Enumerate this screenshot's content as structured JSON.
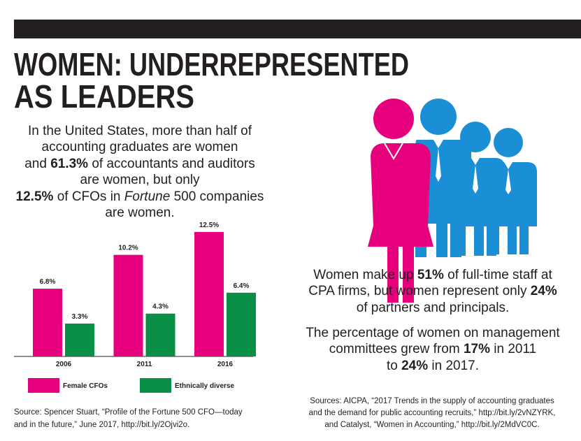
{
  "header": {
    "title_lines": [
      "WOMEN: UNDERREPRESENTED",
      "AS LEADERS"
    ]
  },
  "intro": {
    "parts": [
      "In the United States, more than half of",
      "accounting graduates are women",
      "and",
      "61.3%",
      "of accountants and auditors",
      "are women, but only",
      "12.5%",
      "of CFOs in",
      "Fortune",
      "500 companies",
      "are women."
    ]
  },
  "chart_data": {
    "type": "bar",
    "categories": [
      "2006",
      "2011",
      "2016"
    ],
    "series": [
      {
        "name": "Female CFOs",
        "color": "#e6007e",
        "values": [
          6.8,
          10.2,
          12.5
        ],
        "value_labels": [
          "6.8%",
          "10.2%",
          "12.5%"
        ]
      },
      {
        "name": "Ethnically diverse",
        "color": "#0a8f47",
        "values": [
          3.3,
          4.3,
          6.4
        ],
        "value_labels": [
          "3.3%",
          "4.3%",
          "6.4%"
        ]
      }
    ]
  },
  "chart_source": [
    "Source: Spencer Stuart, “Profile of the Fortune 500 CFO—today",
    "and in the future,” June 2017, http://bit.ly/2Ojvi2o."
  ],
  "facts": {
    "staff": [
      "Women make up",
      "51%",
      "of full-time staff at",
      "CPA firms, but women represent only",
      "24%",
      "of partners and principals."
    ],
    "committees": [
      "The percentage of women on management",
      "committees grew from",
      "17%",
      "in 2011",
      "to",
      "24%",
      "in 2017."
    ]
  },
  "sources": [
    "Sources: AICPA, “2017 Trends in the supply of accounting graduates",
    "and the demand for public accounting recruits,” http://bit.ly/2vNZYRK,",
    "and Catalyst, “Women in Accounting,” http://bit.ly/2MdVC0C."
  ]
}
